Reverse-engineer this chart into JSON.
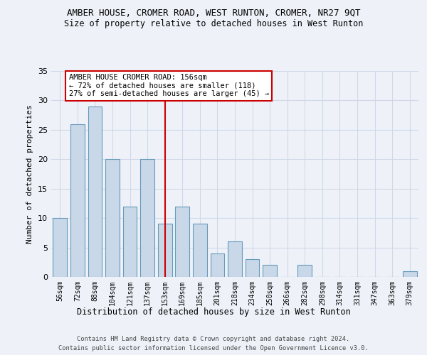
{
  "title": "AMBER HOUSE, CROMER ROAD, WEST RUNTON, CROMER, NR27 9QT",
  "subtitle": "Size of property relative to detached houses in West Runton",
  "xlabel": "Distribution of detached houses by size in West Runton",
  "ylabel": "Number of detached properties",
  "footer1": "Contains HM Land Registry data © Crown copyright and database right 2024.",
  "footer2": "Contains public sector information licensed under the Open Government Licence v3.0.",
  "categories": [
    "56sqm",
    "72sqm",
    "88sqm",
    "104sqm",
    "121sqm",
    "137sqm",
    "153sqm",
    "169sqm",
    "185sqm",
    "201sqm",
    "218sqm",
    "234sqm",
    "250sqm",
    "266sqm",
    "282sqm",
    "298sqm",
    "314sqm",
    "331sqm",
    "347sqm",
    "363sqm",
    "379sqm"
  ],
  "values": [
    10,
    26,
    29,
    20,
    12,
    20,
    9,
    12,
    9,
    4,
    6,
    3,
    2,
    0,
    2,
    0,
    0,
    0,
    0,
    0,
    1
  ],
  "bar_color": "#c8d8e8",
  "bar_edge_color": "#6699bb",
  "bar_edge_width": 0.8,
  "grid_color": "#d0d8e8",
  "background_color": "#eef2f8",
  "red_line_index": 6,
  "red_line_color": "#cc0000",
  "annotation_text": "AMBER HOUSE CROMER ROAD: 156sqm\n← 72% of detached houses are smaller (118)\n27% of semi-detached houses are larger (45) →",
  "annotation_box_color": "#ffffff",
  "annotation_box_edge_color": "#cc0000",
  "ylim": [
    0,
    35
  ],
  "yticks": [
    0,
    5,
    10,
    15,
    20,
    25,
    30,
    35
  ]
}
